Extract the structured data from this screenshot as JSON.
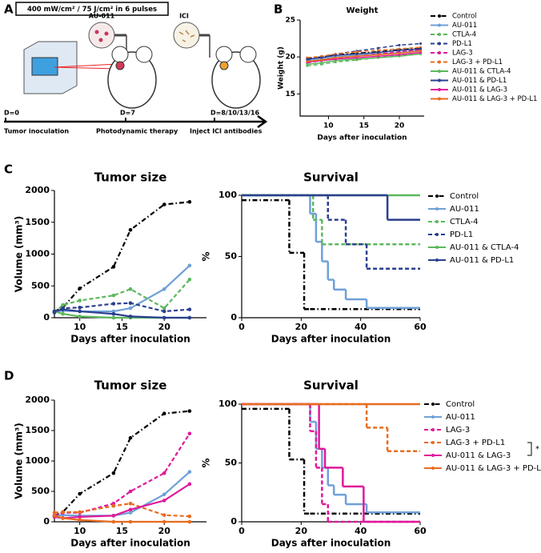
{
  "diagram": {
    "panel": "A",
    "box_text": "400 mW/cm² / 75 J/cm² in 6 pulses",
    "agents": [
      "AU-011",
      "ICI"
    ],
    "days": [
      "D=0",
      "D=7",
      "D=8/10/13/16"
    ],
    "steps": [
      "Tumor inoculation",
      "Photodynamic therapy",
      "Inject ICI antibodies"
    ]
  },
  "chart_data": [
    {
      "type": "line",
      "panel": "B",
      "title": "Weight",
      "xlabel": "Days after inoculation",
      "ylabel": "Weight (g)",
      "x": [
        7,
        9,
        11,
        14,
        17,
        20,
        23
      ],
      "xlim": [
        6,
        23.5
      ],
      "xticks": [
        10,
        15,
        20
      ],
      "ylim": [
        12,
        25
      ],
      "yticks": [
        15,
        20,
        25
      ],
      "series": [
        {
          "name": "Control",
          "color": "#000000",
          "style": "dashdot",
          "values": [
            19.8,
            20.0,
            20.3,
            20.5,
            20.7,
            21.0,
            21.2
          ]
        },
        {
          "name": "AU-011",
          "color": "#6fa0d8",
          "style": "solid",
          "values": [
            19.5,
            19.7,
            20.0,
            20.2,
            20.4,
            20.6,
            20.9
          ]
        },
        {
          "name": "CTLA-4",
          "color": "#5cb85c",
          "style": "dashed",
          "values": [
            18.8,
            19.0,
            19.3,
            19.6,
            19.9,
            20.2,
            20.6
          ]
        },
        {
          "name": "PD-L1",
          "color": "#2b3f8f",
          "style": "dashed",
          "values": [
            19.6,
            20.0,
            20.4,
            20.8,
            21.2,
            21.6,
            21.8
          ]
        },
        {
          "name": "LAG-3",
          "color": "#e0189a",
          "style": "dashed",
          "values": [
            19.2,
            19.5,
            19.8,
            20.1,
            20.4,
            20.7,
            21.0
          ]
        },
        {
          "name": "LAG-3 + PD-L1",
          "color": "#e86c1f",
          "style": "dashed",
          "values": [
            19.9,
            20.1,
            20.4,
            20.7,
            20.9,
            21.1,
            21.3
          ]
        },
        {
          "name": "AU-011 & CTLA-4",
          "color": "#5cb85c",
          "style": "solid",
          "values": [
            19.0,
            19.2,
            19.5,
            19.7,
            19.9,
            20.1,
            20.4
          ]
        },
        {
          "name": "AU-011 & PD-L1",
          "color": "#2b3f8f",
          "style": "solid",
          "values": [
            19.7,
            19.9,
            20.2,
            20.4,
            20.6,
            20.9,
            21.1
          ]
        },
        {
          "name": "AU-011 & LAG-3",
          "color": "#e0189a",
          "style": "solid",
          "values": [
            19.3,
            19.5,
            19.7,
            19.9,
            20.1,
            20.3,
            20.6
          ]
        },
        {
          "name": "AU-011 & LAG-3 + PD-L1",
          "color": "#e86c1f",
          "style": "solid",
          "values": [
            19.4,
            19.6,
            19.9,
            20.1,
            20.3,
            20.5,
            20.8
          ]
        }
      ]
    },
    {
      "type": "line",
      "panel": "C",
      "title": "Tumor size",
      "xlabel": "Days after inoculation",
      "ylabel": "Volume (mm³)",
      "x": [
        7,
        8,
        10,
        14,
        16,
        20,
        23
      ],
      "xlim": [
        7,
        25
      ],
      "xticks": [
        10,
        15,
        20
      ],
      "ylim": [
        0,
        2000
      ],
      "yticks": [
        0,
        500,
        1000,
        1500,
        2000
      ],
      "series": [
        {
          "name": "Control",
          "color": "#000000",
          "style": "dashdot",
          "values": [
            100,
            160,
            460,
            800,
            1380,
            1780,
            1820
          ]
        },
        {
          "name": "AU-011",
          "color": "#6fa0d8",
          "style": "solid",
          "values": [
            100,
            110,
            100,
            100,
            150,
            450,
            820
          ]
        },
        {
          "name": "CTLA-4",
          "color": "#5cb85c",
          "style": "dashed",
          "values": [
            80,
            200,
            270,
            350,
            450,
            150,
            600
          ]
        },
        {
          "name": "PD-L1",
          "color": "#2b3f8f",
          "style": "dashed",
          "values": [
            80,
            150,
            160,
            220,
            230,
            100,
            130
          ]
        },
        {
          "name": "AU-011 & CTLA-4",
          "color": "#5cb85c",
          "style": "solid",
          "values": [
            100,
            60,
            20,
            0,
            0,
            0,
            0
          ]
        },
        {
          "name": "AU-011 & PD-L1",
          "color": "#2b3f8f",
          "style": "solid",
          "values": [
            100,
            130,
            100,
            60,
            20,
            0,
            0
          ]
        }
      ]
    },
    {
      "type": "step",
      "title": "Survival",
      "xlabel": "Days after inoculation",
      "ylabel": "%",
      "xlim": [
        0,
        60
      ],
      "xticks": [
        0,
        20,
        40,
        60
      ],
      "ylim": [
        0,
        100
      ],
      "yticks": [
        0,
        50,
        100
      ],
      "series": [
        {
          "name": "Control",
          "color": "#000000",
          "style": "dashdot",
          "x": [
            0,
            16,
            21,
            23
          ],
          "values": [
            96,
            53,
            7,
            7
          ]
        },
        {
          "name": "AU-011",
          "color": "#6fa0d8",
          "style": "solid",
          "x": [
            0,
            23,
            25,
            27,
            29,
            31,
            35,
            42
          ],
          "values": [
            100,
            85,
            62,
            46,
            31,
            23,
            15,
            8
          ]
        },
        {
          "name": "CTLA-4",
          "color": "#5cb85c",
          "style": "dashed",
          "x": [
            0,
            24,
            27
          ],
          "values": [
            100,
            80,
            60
          ]
        },
        {
          "name": "PD-L1",
          "color": "#2b3f8f",
          "style": "dashed",
          "x": [
            0,
            29,
            35,
            42
          ],
          "values": [
            100,
            80,
            60,
            40
          ]
        },
        {
          "name": "AU-011 & CTLA-4",
          "color": "#5cb85c",
          "style": "solid",
          "x": [
            0
          ],
          "values": [
            100
          ]
        },
        {
          "name": "AU-011 & PD-L1",
          "color": "#2b3f8f",
          "style": "solid",
          "x": [
            0,
            49
          ],
          "values": [
            100,
            80
          ]
        }
      ]
    },
    {
      "type": "line",
      "panel": "D",
      "title": "Tumor size",
      "xlabel": "Days after inoculation",
      "ylabel": "Volume (mm³)",
      "x": [
        7,
        8,
        10,
        14,
        16,
        20,
        23
      ],
      "xlim": [
        7,
        25
      ],
      "xticks": [
        10,
        15,
        20
      ],
      "ylim": [
        0,
        2000
      ],
      "yticks": [
        0,
        500,
        1000,
        1500,
        2000
      ],
      "series": [
        {
          "name": "Control",
          "color": "#000000",
          "style": "dashdot",
          "values": [
            100,
            160,
            460,
            800,
            1380,
            1780,
            1820
          ]
        },
        {
          "name": "AU-011",
          "color": "#6fa0d8",
          "style": "solid",
          "values": [
            100,
            110,
            100,
            100,
            150,
            450,
            820
          ]
        },
        {
          "name": "LAG-3",
          "color": "#e0189a",
          "style": "dashed",
          "values": [
            100,
            150,
            150,
            300,
            500,
            800,
            1450
          ]
        },
        {
          "name": "LAG-3 + PD-L1",
          "color": "#e86c1f",
          "style": "dashed",
          "values": [
            150,
            160,
            160,
            260,
            300,
            110,
            90
          ]
        },
        {
          "name": "AU-011 & LAG-3",
          "color": "#e0189a",
          "style": "solid",
          "values": [
            80,
            60,
            80,
            100,
            200,
            350,
            620
          ]
        },
        {
          "name": "AU-011 & LAG-3 + PD-L1",
          "color": "#e86c1f",
          "style": "solid",
          "values": [
            100,
            60,
            30,
            0,
            0,
            0,
            0
          ]
        }
      ]
    },
    {
      "type": "step",
      "title": "Survival",
      "xlabel": "Days after inoculation",
      "ylabel": "%",
      "annotation": "*",
      "xlim": [
        0,
        60
      ],
      "xticks": [
        0,
        20,
        40,
        60
      ],
      "ylim": [
        0,
        100
      ],
      "yticks": [
        0,
        50,
        100
      ],
      "series": [
        {
          "name": "Control",
          "color": "#000000",
          "style": "dashdot",
          "x": [
            0,
            16,
            21,
            23
          ],
          "values": [
            96,
            53,
            7,
            7
          ]
        },
        {
          "name": "AU-011",
          "color": "#6fa0d8",
          "style": "solid",
          "x": [
            0,
            23,
            25,
            27,
            29,
            31,
            35,
            42
          ],
          "values": [
            100,
            85,
            62,
            46,
            31,
            23,
            15,
            8
          ]
        },
        {
          "name": "LAG-3",
          "color": "#e0189a",
          "style": "dashed",
          "x": [
            0,
            23,
            25,
            27,
            29
          ],
          "values": [
            100,
            77,
            46,
            15,
            0
          ]
        },
        {
          "name": "LAG-3 + PD-L1",
          "color": "#e86c1f",
          "style": "dashed",
          "x": [
            0,
            42,
            49
          ],
          "values": [
            100,
            80,
            60
          ]
        },
        {
          "name": "AU-011 & LAG-3",
          "color": "#e0189a",
          "style": "solid",
          "x": [
            0,
            26,
            28,
            34,
            41
          ],
          "values": [
            100,
            62,
            46,
            30,
            0
          ]
        },
        {
          "name": "AU-011 & LAG-3 + PD-L1",
          "color": "#e86c1f",
          "style": "solid",
          "x": [
            0
          ],
          "values": [
            100
          ]
        }
      ]
    }
  ]
}
